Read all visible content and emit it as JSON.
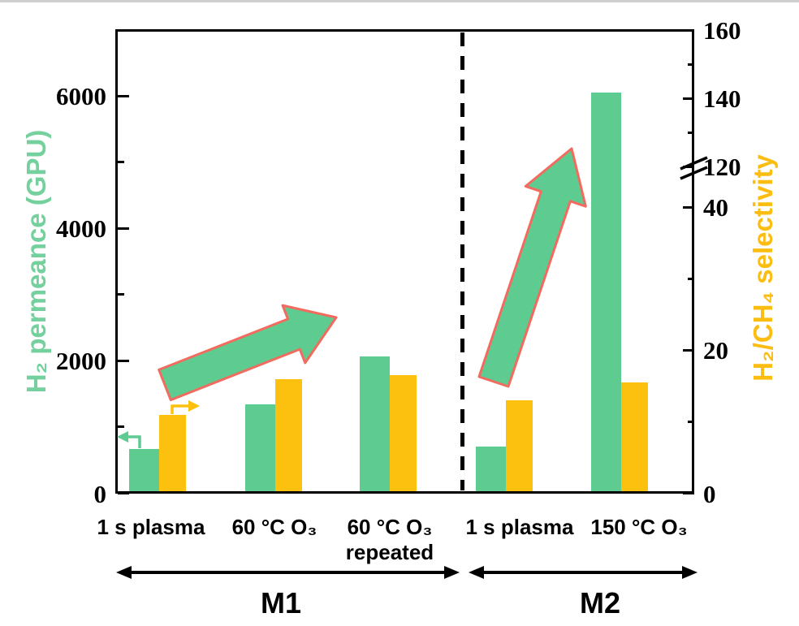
{
  "page": {
    "background": "#ffffff",
    "top_edge_color": "#cfcfcf"
  },
  "chart_data": {
    "type": "bar",
    "title": "",
    "categories": [
      {
        "line1": "1 s plasma",
        "line2": "",
        "group": "M1"
      },
      {
        "line1": "60 °C O₃",
        "line2": "",
        "group": "M1"
      },
      {
        "line1": "60 °C O₃",
        "line2": "repeated",
        "group": "M1"
      },
      {
        "line1": "1 s plasma",
        "line2": "",
        "group": "M2"
      },
      {
        "line1": "150 °C O₃",
        "line2": "",
        "group": "M2"
      }
    ],
    "series": [
      {
        "name": "H₂ permeance (GPU)",
        "axis": "left",
        "color": "#5ECB90",
        "values": [
          670,
          1340,
          2070,
          700,
          6050
        ]
      },
      {
        "name": "H₂/CH₄ selectivity",
        "axis": "right",
        "color": "#FCC10E",
        "values": [
          11,
          16,
          16.5,
          13,
          15.5
        ]
      }
    ],
    "left_axis": {
      "label": "H₂ permeance (GPU)",
      "color": "#74D19E",
      "major_ticks": [
        0,
        2000,
        4000,
        6000
      ],
      "minor_ticks": [
        1000,
        3000,
        5000
      ],
      "range": [
        0,
        7000
      ],
      "grid": false
    },
    "right_axis": {
      "label": "H₂/CH₄ selectivity",
      "color": "#FCBD12",
      "major_ticks_lower": [
        0,
        20,
        40
      ],
      "minor_ticks_lower": [
        10,
        30
      ],
      "major_ticks_upper": [
        120,
        140,
        160
      ],
      "minor_ticks_upper": [
        130,
        150
      ],
      "axis_break": {
        "from": 40,
        "to": 120
      },
      "grid": false
    },
    "group_spans": [
      {
        "label": "M1",
        "from_category": 0,
        "to_category": 2
      },
      {
        "label": "M2",
        "from_category": 3,
        "to_category": 4
      }
    ],
    "annotations": {
      "trend_arrow_fill": "#5ECB90",
      "trend_arrow_outline": "#F26B5E",
      "left_pointer_color": "#5ECB90",
      "right_pointer_color": "#FCC10E",
      "divider_style": "dashed-vertical-line"
    }
  }
}
